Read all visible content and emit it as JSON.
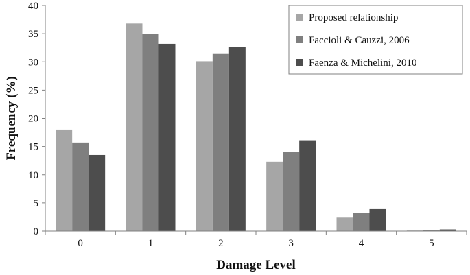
{
  "chart_data": {
    "type": "bar",
    "xlabel": "Damage Level",
    "ylabel": "Frequency (%)",
    "ylim": [
      0,
      40
    ],
    "yticks": [
      0,
      5,
      10,
      15,
      20,
      25,
      30,
      35,
      40
    ],
    "categories": [
      "0",
      "1",
      "2",
      "3",
      "4",
      "5"
    ],
    "grid": false,
    "legend_position": "top-right",
    "series": [
      {
        "name": "Proposed relationship",
        "color": "#a6a6a6",
        "values": [
          18.0,
          36.8,
          30.1,
          12.3,
          2.4,
          0.1
        ]
      },
      {
        "name": "Faccioli & Cauzzi, 2006",
        "color": "#7f7f7f",
        "values": [
          15.7,
          35.0,
          31.4,
          14.1,
          3.2,
          0.2
        ]
      },
      {
        "name": "Faenza & Michelini, 2010",
        "color": "#4d4d4d",
        "values": [
          13.5,
          33.2,
          32.7,
          16.1,
          3.9,
          0.3
        ]
      }
    ]
  }
}
